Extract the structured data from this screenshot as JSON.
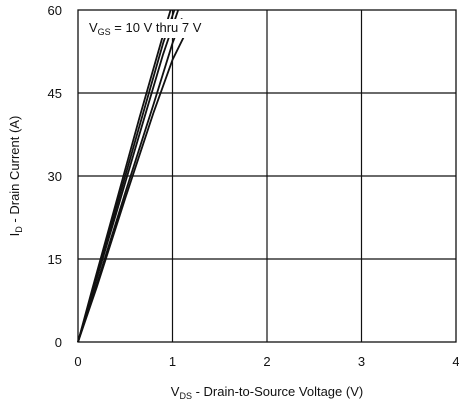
{
  "chart_data": {
    "type": "line",
    "xlabel": {
      "main": "V",
      "sub": "DS",
      "rest": " - Drain-to-Source Voltage (V)"
    },
    "ylabel": {
      "main": "I",
      "sub": "D",
      "rest": " - Drain Current (A)"
    },
    "annotation": {
      "main": "V",
      "sub": "GS",
      "rest": " = 10 V thru 7 V"
    },
    "xlim": [
      0,
      4
    ],
    "ylim": [
      0,
      60
    ],
    "xticks": [
      0,
      1,
      2,
      3,
      4
    ],
    "yticks": [
      0,
      15,
      30,
      45,
      60
    ],
    "xtick_labels": [
      "0",
      "1",
      "2",
      "3",
      "4"
    ],
    "ytick_labels": [
      "0",
      "15",
      "30",
      "45",
      "60"
    ],
    "grid": true,
    "colors": {
      "line": "#111111",
      "grid": "#111111",
      "background": "#ffffff"
    },
    "series": [
      {
        "x": [
          0,
          0.15,
          0.4,
          0.65,
          0.9,
          0.98
        ],
        "y": [
          0,
          9.5,
          25,
          40.5,
          55.5,
          60
        ]
      },
      {
        "x": [
          0,
          0.15,
          0.4,
          0.65,
          0.9,
          1.02
        ],
        "y": [
          0,
          9,
          24,
          39,
          54,
          60
        ]
      },
      {
        "x": [
          0,
          0.15,
          0.4,
          0.65,
          0.9,
          1.06
        ],
        "y": [
          0,
          8.7,
          23,
          37.5,
          52,
          60
        ]
      },
      {
        "x": [
          0,
          0.2,
          0.5,
          0.8,
          1.0,
          1.1
        ],
        "y": [
          0,
          10.5,
          27,
          43,
          54,
          58.5
        ]
      },
      {
        "x": [
          0,
          0.2,
          0.5,
          0.8,
          1.0,
          1.13
        ],
        "y": [
          0,
          10,
          26,
          41.5,
          51,
          55.5
        ]
      }
    ]
  }
}
